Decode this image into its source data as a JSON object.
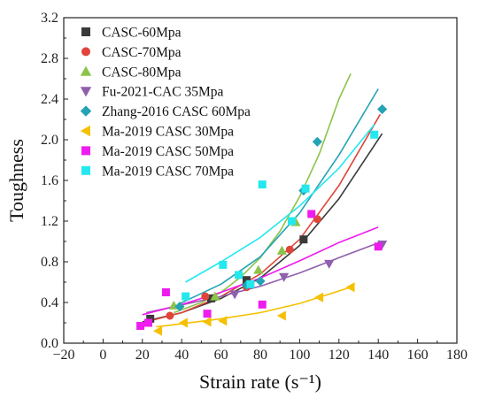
{
  "chart_data": {
    "type": "scatter",
    "xlabel": "Strain rate (s⁻¹)",
    "ylabel": "Toughness",
    "xlim": [
      -20,
      180
    ],
    "ylim": [
      0.0,
      3.2
    ],
    "xticks": [
      -20,
      0,
      20,
      40,
      60,
      80,
      100,
      120,
      140,
      160,
      180
    ],
    "yticks": [
      0.0,
      0.4,
      0.8,
      1.2,
      1.6,
      2.0,
      2.4,
      2.8,
      3.2
    ],
    "xtick_labels": [
      "−20",
      "0",
      "20",
      "40",
      "60",
      "80",
      "100",
      "120",
      "140",
      "160",
      "180"
    ],
    "ytick_labels": [
      "0.0",
      "0.4",
      "0.8",
      "1.2",
      "1.6",
      "2.0",
      "2.4",
      "2.8",
      "3.2"
    ],
    "grid": false,
    "legend_position": "top-left",
    "series": [
      {
        "name": "CASC-60Mpa",
        "marker": "square",
        "color": "#3a3a3a",
        "points": [
          [
            24,
            0.24
          ],
          [
            55,
            0.44
          ],
          [
            73,
            0.62
          ],
          [
            102,
            1.02
          ]
        ],
        "fit": [
          [
            20,
            0.21
          ],
          [
            40,
            0.3
          ],
          [
            60,
            0.44
          ],
          [
            80,
            0.64
          ],
          [
            100,
            0.96
          ],
          [
            120,
            1.42
          ],
          [
            142,
            2.06
          ]
        ]
      },
      {
        "name": "CASC-70Mpa",
        "marker": "circle",
        "color": "#e0453a",
        "points": [
          [
            34,
            0.27
          ],
          [
            52,
            0.46
          ],
          [
            73,
            0.55
          ],
          [
            95,
            0.92
          ],
          [
            109,
            1.22
          ]
        ],
        "fit": [
          [
            20,
            0.2
          ],
          [
            40,
            0.3
          ],
          [
            60,
            0.46
          ],
          [
            80,
            0.68
          ],
          [
            100,
            1.02
          ],
          [
            120,
            1.55
          ],
          [
            141,
            2.25
          ]
        ]
      },
      {
        "name": "CASC-80Mpa",
        "marker": "triangle-up",
        "color": "#8cc34a",
        "points": [
          [
            36,
            0.37
          ],
          [
            57,
            0.46
          ],
          [
            79,
            0.72
          ],
          [
            91,
            0.91
          ],
          [
            98,
            1.19
          ]
        ],
        "fit": [
          [
            36,
            0.3
          ],
          [
            50,
            0.4
          ],
          [
            60,
            0.5
          ],
          [
            70,
            0.65
          ],
          [
            80,
            0.84
          ],
          [
            90,
            1.1
          ],
          [
            100,
            1.44
          ],
          [
            110,
            1.86
          ],
          [
            120,
            2.4
          ],
          [
            126,
            2.65
          ]
        ]
      },
      {
        "name": "Fu-2021-CAC 35Mpa",
        "marker": "triangle-down",
        "color": "#8e5fac",
        "points": [
          [
            67,
            0.48
          ],
          [
            92,
            0.65
          ],
          [
            115,
            0.78
          ],
          [
            142,
            0.97
          ]
        ],
        "fit": [
          [
            22,
            0.3
          ],
          [
            60,
            0.46
          ],
          [
            80,
            0.56
          ],
          [
            100,
            0.69
          ],
          [
            120,
            0.84
          ],
          [
            142,
            1.0
          ]
        ]
      },
      {
        "name": "Zhang-2016 CASC 60Mpa",
        "marker": "diamond",
        "color": "#23a3b5",
        "points": [
          [
            39,
            0.36
          ],
          [
            73,
            0.57
          ],
          [
            80,
            0.61
          ],
          [
            102,
            1.5
          ],
          [
            109,
            1.98
          ],
          [
            142,
            2.3
          ]
        ],
        "fit": [
          [
            38,
            0.38
          ],
          [
            60,
            0.58
          ],
          [
            80,
            0.85
          ],
          [
            100,
            1.28
          ],
          [
            120,
            1.85
          ],
          [
            140,
            2.5
          ]
        ]
      },
      {
        "name": "Ma-2019 CASC 30Mpa",
        "marker": "triangle-left",
        "color": "#f6c000",
        "points": [
          [
            28,
            0.12
          ],
          [
            41,
            0.2
          ],
          [
            53,
            0.21
          ],
          [
            61,
            0.22
          ],
          [
            91,
            0.27
          ],
          [
            110,
            0.45
          ],
          [
            126,
            0.55
          ]
        ],
        "fit": [
          [
            27,
            0.16
          ],
          [
            40,
            0.19
          ],
          [
            60,
            0.24
          ],
          [
            80,
            0.3
          ],
          [
            100,
            0.39
          ],
          [
            126,
            0.55
          ]
        ]
      },
      {
        "name": "Ma-2019 CASC 50Mpa",
        "marker": "square",
        "color": "#ee1cee",
        "points": [
          [
            19,
            0.17
          ],
          [
            23,
            0.2
          ],
          [
            32,
            0.5
          ],
          [
            53,
            0.29
          ],
          [
            81,
            0.38
          ],
          [
            106,
            1.27
          ],
          [
            140,
            0.95
          ]
        ],
        "fit": [
          [
            20,
            0.28
          ],
          [
            40,
            0.38
          ],
          [
            60,
            0.5
          ],
          [
            80,
            0.64
          ],
          [
            100,
            0.81
          ],
          [
            120,
            0.99
          ],
          [
            140,
            1.14
          ]
        ]
      },
      {
        "name": "Ma-2019 CASC 70Mpa",
        "marker": "square",
        "color": "#24e8ee",
        "points": [
          [
            42,
            0.46
          ],
          [
            61,
            0.77
          ],
          [
            69,
            0.67
          ],
          [
            75,
            0.58
          ],
          [
            81,
            1.56
          ],
          [
            96,
            1.2
          ],
          [
            103,
            1.52
          ],
          [
            138,
            2.05
          ]
        ],
        "fit": [
          [
            42,
            0.6
          ],
          [
            60,
            0.8
          ],
          [
            80,
            1.04
          ],
          [
            100,
            1.35
          ],
          [
            120,
            1.72
          ],
          [
            138,
            2.15
          ]
        ]
      }
    ]
  }
}
